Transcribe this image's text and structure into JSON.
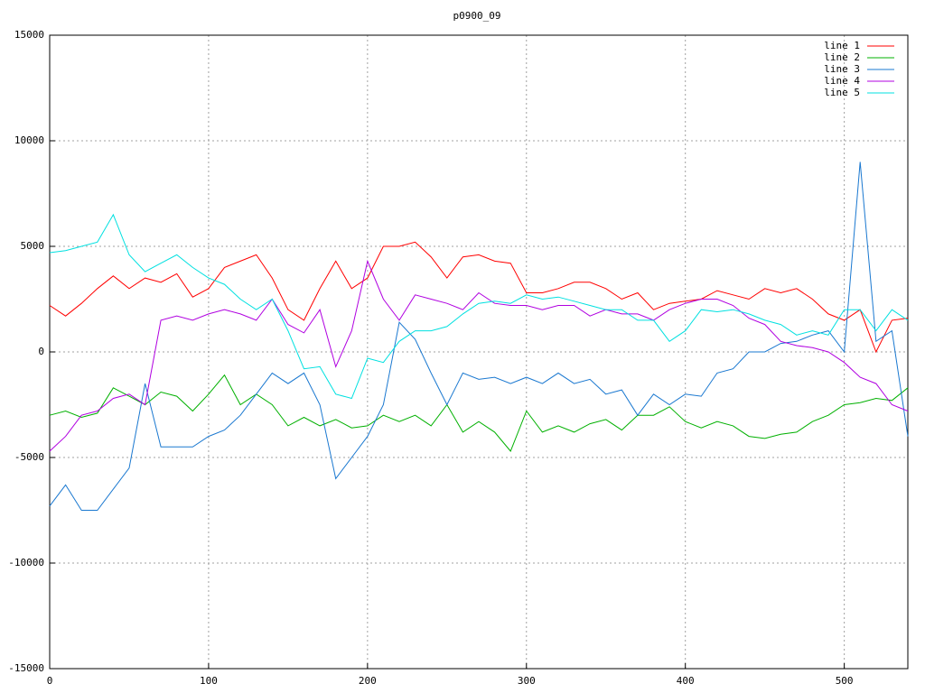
{
  "chart_data": {
    "type": "line",
    "title": "p0900_09",
    "x": [
      0,
      10,
      20,
      30,
      40,
      50,
      60,
      70,
      80,
      90,
      100,
      110,
      120,
      130,
      140,
      150,
      160,
      170,
      180,
      190,
      200,
      210,
      220,
      230,
      240,
      250,
      260,
      270,
      280,
      290,
      300,
      310,
      320,
      330,
      340,
      350,
      360,
      370,
      380,
      390,
      400,
      410,
      420,
      430,
      440,
      450,
      460,
      470,
      480,
      490,
      500,
      510,
      520,
      530,
      540
    ],
    "series": [
      {
        "name": "line 1",
        "color": "#ff0000",
        "values": [
          2200,
          1700,
          2300,
          3000,
          3600,
          3000,
          3500,
          3300,
          3700,
          2600,
          3000,
          4000,
          4300,
          4600,
          3500,
          2000,
          1500,
          3000,
          4300,
          3000,
          3500,
          5000,
          5000,
          5200,
          4500,
          3500,
          4500,
          4600,
          4300,
          4200,
          2800,
          2800,
          3000,
          3300,
          3300,
          3000,
          2500,
          2800,
          2000,
          2300,
          2400,
          2500,
          2900,
          2700,
          2500,
          3000,
          2800,
          3000,
          2500,
          1800,
          1500,
          2000,
          0,
          1500,
          1600
        ]
      },
      {
        "name": "line 2",
        "color": "#00b000",
        "values": [
          -3000,
          -2800,
          -3100,
          -2900,
          -1700,
          -2100,
          -2500,
          -1900,
          -2100,
          -2800,
          -2000,
          -1100,
          -2500,
          -2000,
          -2500,
          -3500,
          -3100,
          -3500,
          -3200,
          -3600,
          -3500,
          -3000,
          -3300,
          -3000,
          -3500,
          -2500,
          -3800,
          -3300,
          -3800,
          -4700,
          -2800,
          -3800,
          -3500,
          -3800,
          -3400,
          -3200,
          -3700,
          -3000,
          -3000,
          -2600,
          -3300,
          -3600,
          -3300,
          -3500,
          -4000,
          -4100,
          -3900,
          -3800,
          -3300,
          -3000,
          -2500,
          -2400,
          -2200,
          -2300,
          -1700
        ]
      },
      {
        "name": "line 3",
        "color": "#1a78d0",
        "values": [
          -7300,
          -6300,
          -7500,
          -7500,
          -6500,
          -5500,
          -1500,
          -4500,
          -4500,
          -4500,
          -4000,
          -3700,
          -3000,
          -2000,
          -1000,
          -1500,
          -1000,
          -2500,
          -6000,
          -5000,
          -4000,
          -2500,
          1400,
          600,
          -1000,
          -2500,
          -1000,
          -1300,
          -1200,
          -1500,
          -1200,
          -1500,
          -1000,
          -1500,
          -1300,
          -2000,
          -1800,
          -3000,
          -2000,
          -2500,
          -2000,
          -2100,
          -1000,
          -800,
          0,
          0,
          400,
          500,
          800,
          1000,
          0,
          9000,
          500,
          1000,
          -4000
        ]
      },
      {
        "name": "line 4",
        "color": "#b000e0",
        "values": [
          -4700,
          -4000,
          -3000,
          -2800,
          -2200,
          -2000,
          -2500,
          1500,
          1700,
          1500,
          1800,
          2000,
          1800,
          1500,
          2500,
          1300,
          900,
          2000,
          -700,
          1000,
          4300,
          2500,
          1500,
          2700,
          2500,
          2300,
          2000,
          2800,
          2300,
          2200,
          2200,
          2000,
          2200,
          2200,
          1700,
          2000,
          1800,
          1800,
          1500,
          2000,
          2300,
          2500,
          2500,
          2200,
          1600,
          1300,
          500,
          300,
          200,
          0,
          -500,
          -1200,
          -1500,
          -2500,
          -2800
        ]
      },
      {
        "name": "line 5",
        "color": "#00e0e0",
        "values": [
          4700,
          4800,
          5000,
          5200,
          6500,
          4600,
          3800,
          4200,
          4600,
          4000,
          3500,
          3200,
          2500,
          2000,
          2500,
          1000,
          -800,
          -700,
          -2000,
          -2200,
          -300,
          -500,
          500,
          1000,
          1000,
          1200,
          1800,
          2300,
          2400,
          2300,
          2700,
          2500,
          2600,
          2400,
          2200,
          2000,
          2000,
          1500,
          1500,
          500,
          1000,
          2000,
          1900,
          2000,
          1800,
          1500,
          1300,
          800,
          1000,
          800,
          2000,
          2000,
          1000,
          2000,
          1500
        ]
      }
    ],
    "xlim": [
      0,
      540
    ],
    "ylim": [
      -15000,
      15000
    ],
    "xticks": [
      0,
      100,
      200,
      300,
      400,
      500
    ],
    "yticks": [
      -15000,
      -10000,
      -5000,
      0,
      5000,
      10000,
      15000
    ],
    "grid": true,
    "legend": "top-right"
  }
}
